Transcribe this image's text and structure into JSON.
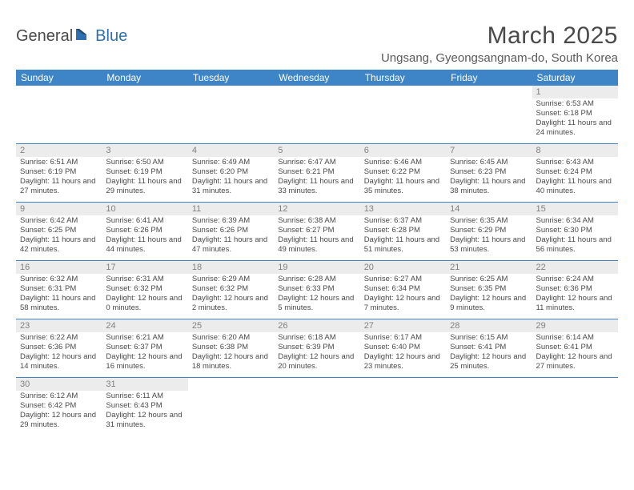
{
  "logo": {
    "general": "General",
    "blue": "Blue"
  },
  "title": "March 2025",
  "location": "Ungsang, Gyeongsangnam-do, South Korea",
  "colors": {
    "header_bg": "#3d85c6",
    "header_text": "#ffffff",
    "divider": "#3d85c6",
    "num_strip_bg": "#ececec",
    "num_color": "#808080",
    "body_text": "#4a4a4a",
    "title_color": "#4a4a4a",
    "logo_gray": "#4a4a4a",
    "logo_blue": "#2d6fb0"
  },
  "day_names": [
    "Sunday",
    "Monday",
    "Tuesday",
    "Wednesday",
    "Thursday",
    "Friday",
    "Saturday"
  ],
  "weeks": [
    [
      null,
      null,
      null,
      null,
      null,
      null,
      {
        "n": "1",
        "sr": "6:53 AM",
        "ss": "6:18 PM",
        "dl": "11 hours and 24 minutes."
      }
    ],
    [
      {
        "n": "2",
        "sr": "6:51 AM",
        "ss": "6:19 PM",
        "dl": "11 hours and 27 minutes."
      },
      {
        "n": "3",
        "sr": "6:50 AM",
        "ss": "6:19 PM",
        "dl": "11 hours and 29 minutes."
      },
      {
        "n": "4",
        "sr": "6:49 AM",
        "ss": "6:20 PM",
        "dl": "11 hours and 31 minutes."
      },
      {
        "n": "5",
        "sr": "6:47 AM",
        "ss": "6:21 PM",
        "dl": "11 hours and 33 minutes."
      },
      {
        "n": "6",
        "sr": "6:46 AM",
        "ss": "6:22 PM",
        "dl": "11 hours and 35 minutes."
      },
      {
        "n": "7",
        "sr": "6:45 AM",
        "ss": "6:23 PM",
        "dl": "11 hours and 38 minutes."
      },
      {
        "n": "8",
        "sr": "6:43 AM",
        "ss": "6:24 PM",
        "dl": "11 hours and 40 minutes."
      }
    ],
    [
      {
        "n": "9",
        "sr": "6:42 AM",
        "ss": "6:25 PM",
        "dl": "11 hours and 42 minutes."
      },
      {
        "n": "10",
        "sr": "6:41 AM",
        "ss": "6:26 PM",
        "dl": "11 hours and 44 minutes."
      },
      {
        "n": "11",
        "sr": "6:39 AM",
        "ss": "6:26 PM",
        "dl": "11 hours and 47 minutes."
      },
      {
        "n": "12",
        "sr": "6:38 AM",
        "ss": "6:27 PM",
        "dl": "11 hours and 49 minutes."
      },
      {
        "n": "13",
        "sr": "6:37 AM",
        "ss": "6:28 PM",
        "dl": "11 hours and 51 minutes."
      },
      {
        "n": "14",
        "sr": "6:35 AM",
        "ss": "6:29 PM",
        "dl": "11 hours and 53 minutes."
      },
      {
        "n": "15",
        "sr": "6:34 AM",
        "ss": "6:30 PM",
        "dl": "11 hours and 56 minutes."
      }
    ],
    [
      {
        "n": "16",
        "sr": "6:32 AM",
        "ss": "6:31 PM",
        "dl": "11 hours and 58 minutes."
      },
      {
        "n": "17",
        "sr": "6:31 AM",
        "ss": "6:32 PM",
        "dl": "12 hours and 0 minutes."
      },
      {
        "n": "18",
        "sr": "6:29 AM",
        "ss": "6:32 PM",
        "dl": "12 hours and 2 minutes."
      },
      {
        "n": "19",
        "sr": "6:28 AM",
        "ss": "6:33 PM",
        "dl": "12 hours and 5 minutes."
      },
      {
        "n": "20",
        "sr": "6:27 AM",
        "ss": "6:34 PM",
        "dl": "12 hours and 7 minutes."
      },
      {
        "n": "21",
        "sr": "6:25 AM",
        "ss": "6:35 PM",
        "dl": "12 hours and 9 minutes."
      },
      {
        "n": "22",
        "sr": "6:24 AM",
        "ss": "6:36 PM",
        "dl": "12 hours and 11 minutes."
      }
    ],
    [
      {
        "n": "23",
        "sr": "6:22 AM",
        "ss": "6:36 PM",
        "dl": "12 hours and 14 minutes."
      },
      {
        "n": "24",
        "sr": "6:21 AM",
        "ss": "6:37 PM",
        "dl": "12 hours and 16 minutes."
      },
      {
        "n": "25",
        "sr": "6:20 AM",
        "ss": "6:38 PM",
        "dl": "12 hours and 18 minutes."
      },
      {
        "n": "26",
        "sr": "6:18 AM",
        "ss": "6:39 PM",
        "dl": "12 hours and 20 minutes."
      },
      {
        "n": "27",
        "sr": "6:17 AM",
        "ss": "6:40 PM",
        "dl": "12 hours and 23 minutes."
      },
      {
        "n": "28",
        "sr": "6:15 AM",
        "ss": "6:41 PM",
        "dl": "12 hours and 25 minutes."
      },
      {
        "n": "29",
        "sr": "6:14 AM",
        "ss": "6:41 PM",
        "dl": "12 hours and 27 minutes."
      }
    ],
    [
      {
        "n": "30",
        "sr": "6:12 AM",
        "ss": "6:42 PM",
        "dl": "12 hours and 29 minutes."
      },
      {
        "n": "31",
        "sr": "6:11 AM",
        "ss": "6:43 PM",
        "dl": "12 hours and 31 minutes."
      },
      null,
      null,
      null,
      null,
      null
    ]
  ],
  "labels": {
    "sunrise": "Sunrise: ",
    "sunset": "Sunset: ",
    "daylight": "Daylight: "
  }
}
